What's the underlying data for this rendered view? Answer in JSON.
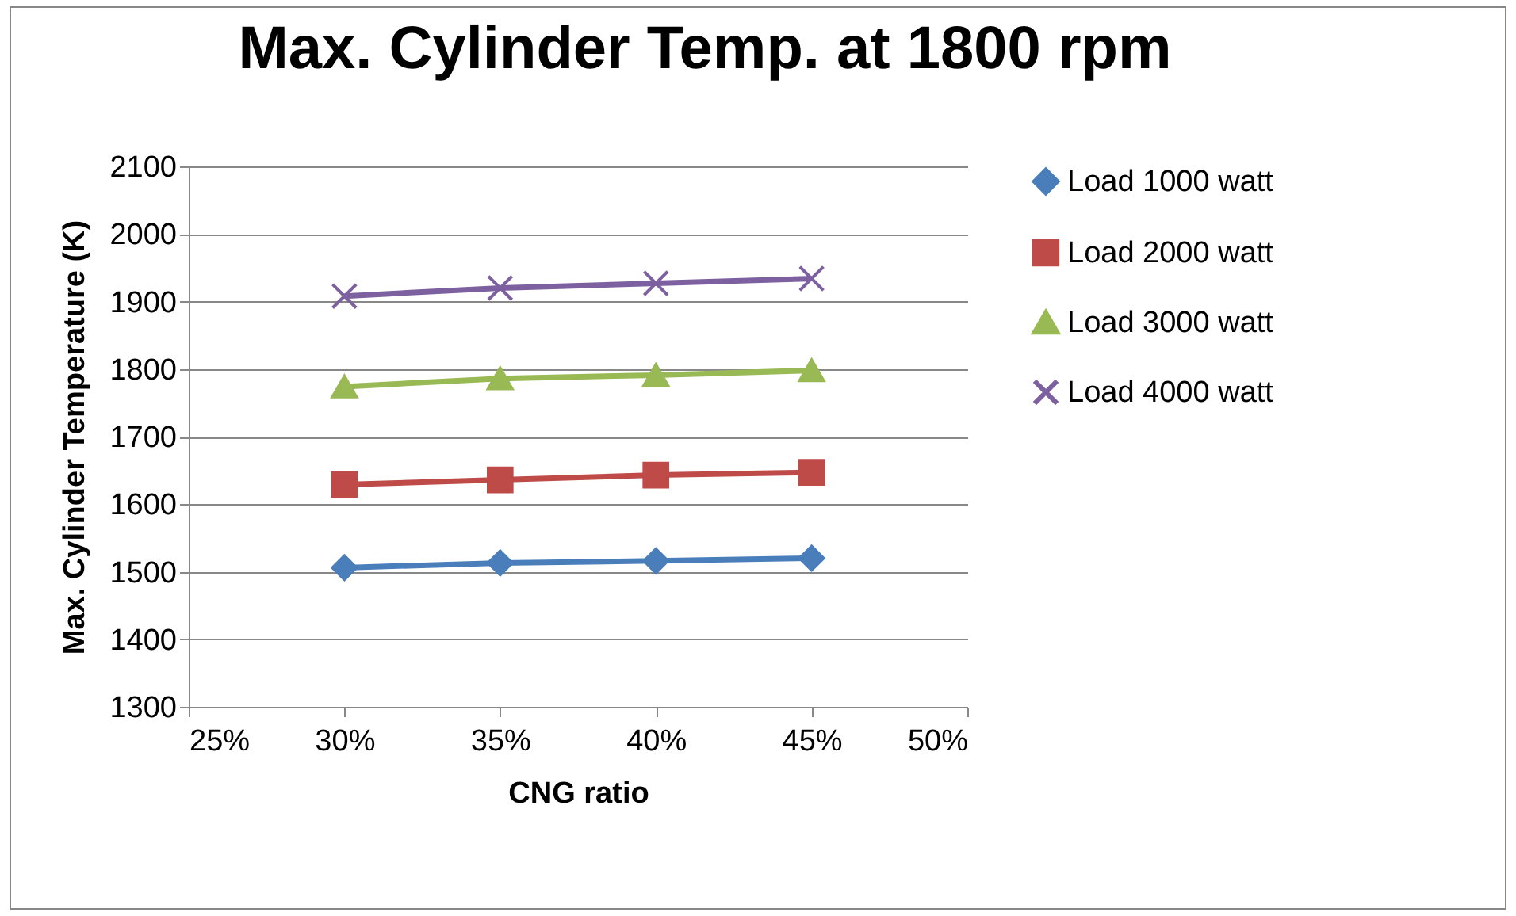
{
  "chart_data": {
    "type": "line",
    "title": "Max. Cylinder Temp. at 1800 rpm",
    "xlabel": "CNG ratio",
    "ylabel": "Max. Cylinder Temperature (K)",
    "x": [
      30,
      35,
      40,
      45
    ],
    "series": [
      {
        "name": "Load 1000 watt",
        "color": "#4a7ebb",
        "marker": "diamond",
        "values": [
          1506,
          1513,
          1516,
          1520
        ]
      },
      {
        "name": "Load 2000 watt",
        "color": "#be4b48",
        "marker": "square",
        "values": [
          1629,
          1636,
          1643,
          1647
        ]
      },
      {
        "name": "Load 3000 watt",
        "color": "#98b954",
        "marker": "triangle",
        "values": [
          1774,
          1786,
          1791,
          1798
        ]
      },
      {
        "name": "Load 4000 watt",
        "color": "#7d60a0",
        "marker": "cross",
        "values": [
          1908,
          1920,
          1927,
          1934
        ]
      }
    ],
    "xlim": [
      25,
      50
    ],
    "xticks": [
      {
        "value": 25,
        "label": "25%"
      },
      {
        "value": 30,
        "label": "30%"
      },
      {
        "value": 35,
        "label": "35%"
      },
      {
        "value": 40,
        "label": "40%"
      },
      {
        "value": 45,
        "label": "45%"
      },
      {
        "value": 50,
        "label": "50%"
      }
    ],
    "ylim": [
      1300,
      2100
    ],
    "yticks": [
      1300,
      1400,
      1500,
      1600,
      1700,
      1800,
      1900,
      2000,
      2100
    ],
    "grid": "y",
    "legend": "right",
    "line_style": "solid"
  }
}
